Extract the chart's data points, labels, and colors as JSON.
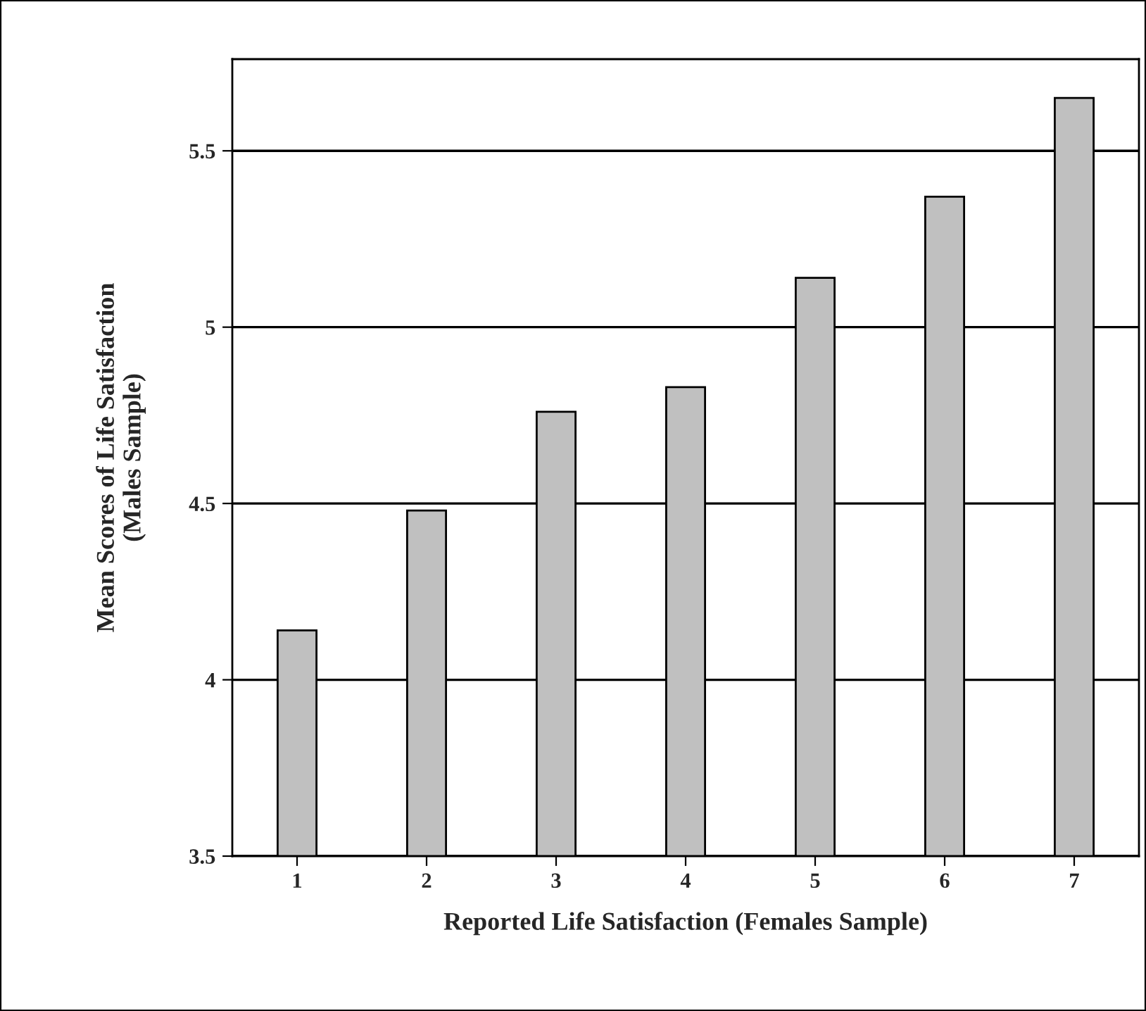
{
  "chart_data": {
    "type": "bar",
    "xlabel": "Reported Life Satisfaction (Females Sample)",
    "ylabel": "Mean Scores of Life Satisfaction\n(Males Sample)",
    "categories": [
      "1",
      "2",
      "3",
      "4",
      "5",
      "6",
      "7"
    ],
    "values": [
      4.14,
      4.48,
      4.76,
      4.83,
      5.14,
      5.37,
      5.65
    ],
    "color": "#c0c0c0",
    "ylim": [
      3.5,
      5.76
    ],
    "yticks": [
      3.5,
      4,
      4.5,
      5,
      5.5
    ],
    "grid": "y",
    "legend": false
  }
}
